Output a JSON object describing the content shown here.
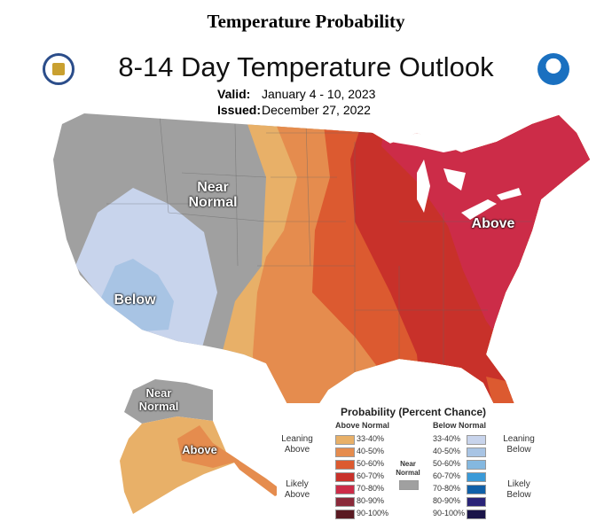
{
  "page_title": "Temperature Probability",
  "headline": "8-14 Day Temperature Outlook",
  "valid_label": "Valid:",
  "valid_value": "January 4 - 10, 2023",
  "issued_label": "Issued:",
  "issued_value": "December 27, 2022",
  "logos": {
    "left": "doc-seal-icon",
    "right": "noaa-logo-icon"
  },
  "map_labels": {
    "near_normal": "Near Normal",
    "below": "Below",
    "above": "Above",
    "ak_near_normal": "Near Normal",
    "ak_above": "Above"
  },
  "legend": {
    "title": "Probability (Percent Chance)",
    "above_header": "Above Normal",
    "below_header": "Below Normal",
    "near_normal": "Near Normal",
    "near_color": "#a0a0a0",
    "leaning_above": "Leaning Above",
    "likely_above": "Likely Above",
    "leaning_below": "Leaning Below",
    "likely_below": "Likely Below",
    "above": [
      {
        "range": "33-40%",
        "color": "#e8b068"
      },
      {
        "range": "40-50%",
        "color": "#e58c4e"
      },
      {
        "range": "50-60%",
        "color": "#dc5a30"
      },
      {
        "range": "60-70%",
        "color": "#c8312a"
      },
      {
        "range": "70-80%",
        "color": "#cc2c48"
      },
      {
        "range": "80-90%",
        "color": "#8a2a3a"
      },
      {
        "range": "90-100%",
        "color": "#5a1a22"
      }
    ],
    "below": [
      {
        "range": "33-40%",
        "color": "#c8d4ec"
      },
      {
        "range": "40-50%",
        "color": "#a8c4e4"
      },
      {
        "range": "50-60%",
        "color": "#84b8e0"
      },
      {
        "range": "60-70%",
        "color": "#3a9ad8"
      },
      {
        "range": "70-80%",
        "color": "#1060a8"
      },
      {
        "range": "80-90%",
        "color": "#2a2478"
      },
      {
        "range": "90-100%",
        "color": "#1a1448"
      }
    ]
  }
}
